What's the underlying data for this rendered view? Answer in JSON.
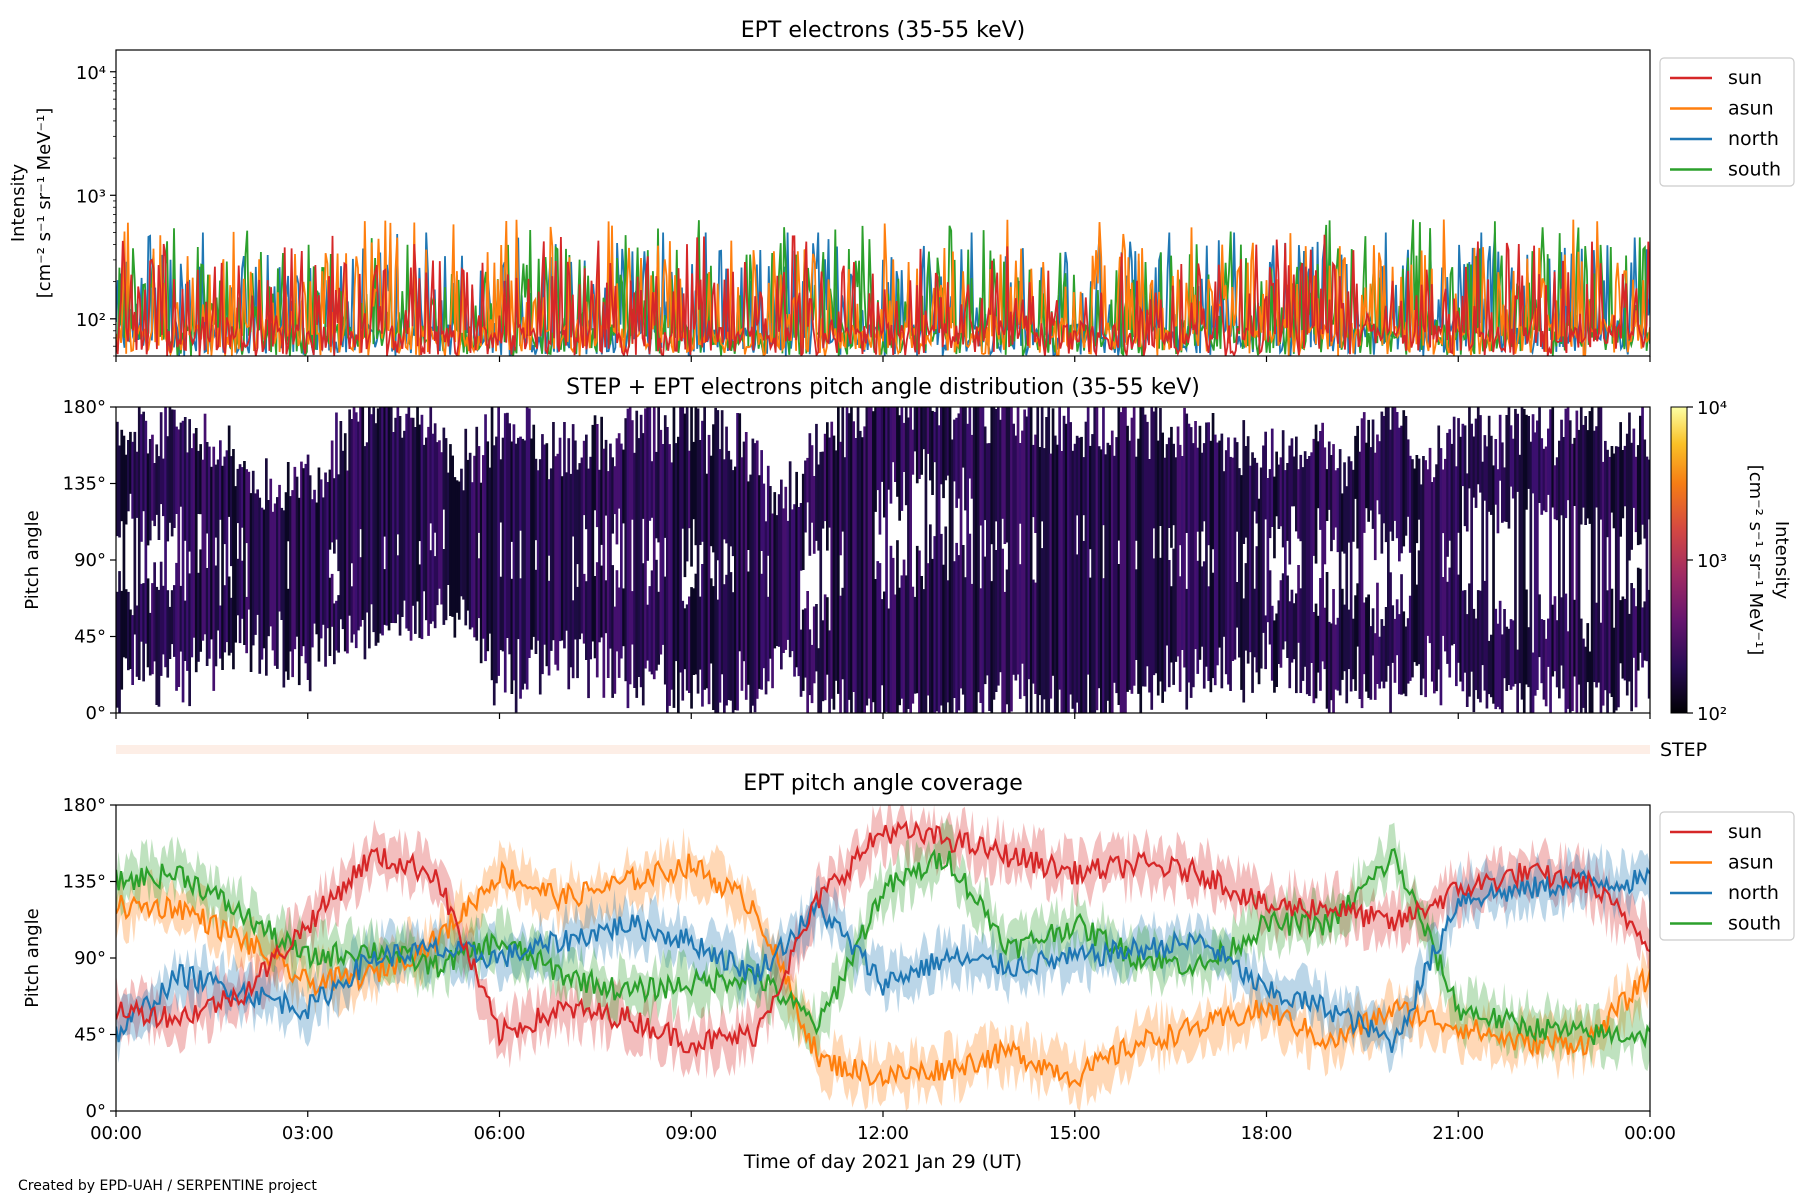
{
  "figure": {
    "credit": "Created by EPD-UAH / SERPENTINE project",
    "xlabel": "Time of day 2021 Jan 29 (UT)",
    "x_ticks": [
      "00:00",
      "03:00",
      "06:00",
      "09:00",
      "12:00",
      "15:00",
      "18:00",
      "21:00",
      "00:00"
    ]
  },
  "colors": {
    "sun": "#d62728",
    "asun": "#ff7f0e",
    "north": "#1f77b4",
    "south": "#2ca02c"
  },
  "chart_data": [
    {
      "type": "line",
      "title": "EPT electrons (35-55 keV)",
      "ylabel_line1": "Intensity",
      "ylabel_line2": "[cm⁻² s⁻¹ sr⁻¹ MeV⁻¹]",
      "yscale": "log",
      "ylim": [
        50,
        15000
      ],
      "y_ticks": [
        {
          "value": 100,
          "label": "10²"
        },
        {
          "value": 1000,
          "label": "10³"
        },
        {
          "value": 10000,
          "label": "10⁴"
        }
      ],
      "xlim_hours": [
        0,
        24
      ],
      "legend_position": "outside-right",
      "series": [
        {
          "name": "sun",
          "color": "#d62728",
          "typical_range": [
            50,
            300
          ],
          "peak": 660
        },
        {
          "name": "asun",
          "color": "#ff7f0e",
          "typical_range": [
            50,
            400
          ],
          "peak": 660
        },
        {
          "name": "north",
          "color": "#1f77b4",
          "typical_range": [
            50,
            400
          ],
          "peak": 500
        },
        {
          "name": "south",
          "color": "#2ca02c",
          "typical_range": [
            50,
            400
          ],
          "peak": 650
        }
      ]
    },
    {
      "type": "heatmap",
      "title": "STEP + EPT electrons pitch angle distribution (35-55 keV)",
      "ylabel": "Pitch angle",
      "ylim": [
        0,
        180
      ],
      "y_ticks": [
        "0°",
        "45°",
        "90°",
        "135°",
        "180°"
      ],
      "colorbar": {
        "label_line1": "Intensity",
        "label_line2": "[cm⁻² s⁻¹ sr⁻¹ MeV⁻¹]",
        "scale": "log",
        "range": [
          100,
          10000
        ],
        "ticks": [
          "10²",
          "10³",
          "10⁴"
        ],
        "colormap": "inferno"
      },
      "step_label": "STEP"
    },
    {
      "type": "line",
      "title": "EPT pitch angle coverage",
      "ylabel": "Pitch angle",
      "ylim": [
        0,
        180
      ],
      "y_ticks": [
        "0°",
        "45°",
        "90°",
        "135°",
        "180°"
      ],
      "xlim_hours": [
        0,
        24
      ],
      "legend_position": "outside-right",
      "uncertainty_band": true,
      "series": [
        {
          "name": "sun",
          "color": "#d62728",
          "x": [
            0,
            1,
            2,
            3,
            4,
            5,
            6,
            7,
            8,
            9,
            10,
            11,
            12,
            13,
            14,
            15,
            16,
            17,
            18,
            19,
            20,
            21,
            22,
            23,
            24
          ],
          "y": [
            60,
            55,
            70,
            110,
            150,
            140,
            45,
            60,
            55,
            40,
            45,
            125,
            165,
            160,
            150,
            140,
            145,
            140,
            120,
            120,
            110,
            130,
            140,
            135,
            100
          ]
        },
        {
          "name": "asun",
          "color": "#ff7f0e",
          "x": [
            0,
            1,
            2,
            3,
            4,
            5,
            6,
            7,
            8,
            9,
            10,
            11,
            12,
            13,
            14,
            15,
            16,
            17,
            18,
            19,
            20,
            21,
            22,
            23,
            24
          ],
          "y": [
            120,
            120,
            100,
            75,
            80,
            100,
            140,
            125,
            135,
            145,
            120,
            30,
            20,
            25,
            35,
            20,
            40,
            50,
            60,
            40,
            60,
            50,
            40,
            40,
            80
          ]
        },
        {
          "name": "north",
          "color": "#1f77b4",
          "x": [
            0,
            1,
            2,
            3,
            4,
            5,
            6,
            7,
            8,
            9,
            10,
            11,
            12,
            13,
            14,
            15,
            16,
            17,
            18,
            19,
            20,
            21,
            22,
            23,
            24
          ],
          "y": [
            45,
            80,
            70,
            60,
            90,
            95,
            90,
            100,
            110,
            100,
            80,
            120,
            75,
            90,
            85,
            90,
            95,
            100,
            70,
            60,
            40,
            125,
            130,
            135,
            135
          ]
        },
        {
          "name": "south",
          "color": "#2ca02c",
          "x": [
            0,
            1,
            2,
            3,
            4,
            5,
            6,
            7,
            8,
            9,
            10,
            11,
            12,
            13,
            14,
            15,
            16,
            17,
            18,
            19,
            20,
            21,
            22,
            23,
            24
          ],
          "y": [
            135,
            140,
            115,
            90,
            95,
            85,
            100,
            80,
            70,
            75,
            80,
            50,
            130,
            150,
            95,
            110,
            90,
            85,
            110,
            110,
            150,
            60,
            50,
            45,
            45
          ]
        }
      ]
    }
  ]
}
